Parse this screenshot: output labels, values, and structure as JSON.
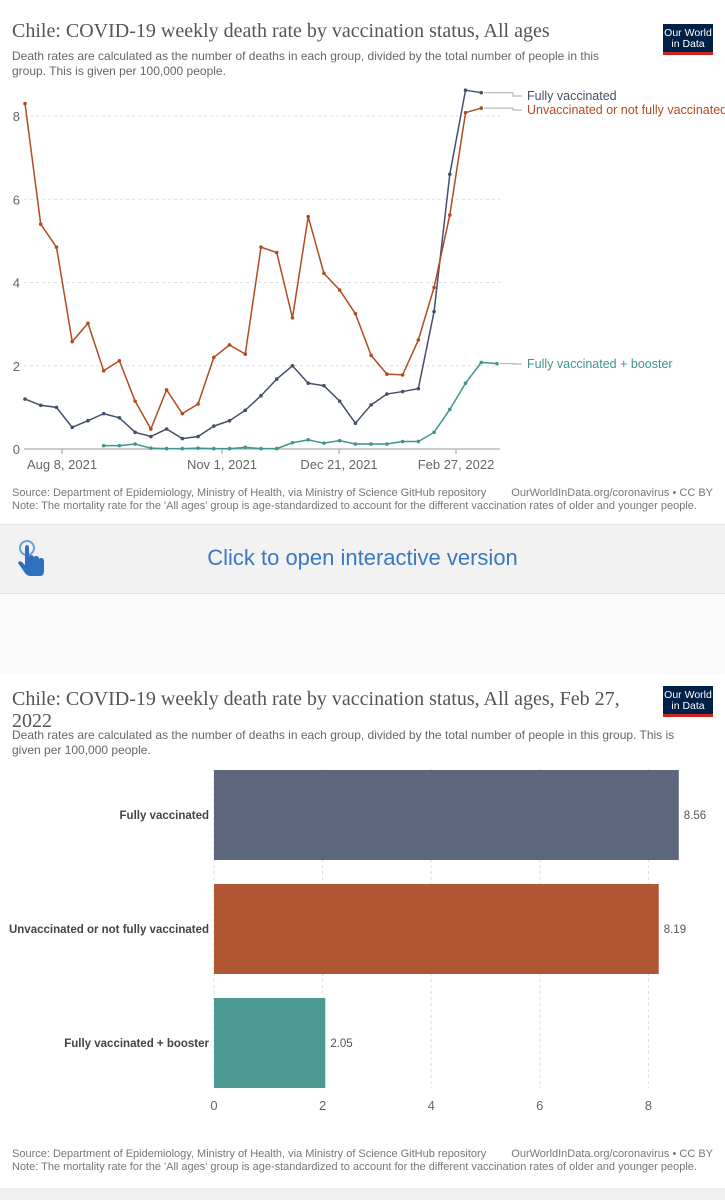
{
  "chart1": {
    "title": "Chile: COVID-19 weekly death rate by vaccination status, All ages",
    "subtitle": "Death rates are calculated as the number of deaths in each group, divided by the total number of people in this group. This is given per 100,000 people.",
    "logo": [
      "Our World",
      "in Data"
    ],
    "source": "Source: Department of Epidemiology, Ministry of Health, via Ministry of Science GitHub repository",
    "url": "OurWorldInData.org/coronavirus • CC BY",
    "note": "Note: The mortality rate for the 'All ages' group is age-standardized to account for the different vaccination rates of older and younger people."
  },
  "cta": {
    "label": "Click to open interactive version",
    "icon": "pointing-hand-icon"
  },
  "chart2": {
    "title": "Chile: COVID-19 weekly death rate by vaccination status, All ages, Feb 27, 2022",
    "subtitle": "Death rates are calculated as the number of deaths in each group, divided by the total number of people in this group. This is given per 100,000 people.",
    "logo": [
      "Our World",
      "in Data"
    ],
    "source": "Source: Department of Epidemiology, Ministry of Health, via Ministry of Science GitHub repository",
    "url": "OurWorldInData.org/coronavirus • CC BY",
    "note": "Note: The mortality rate for the 'All ages' group is age-standardized to account for the different vaccination rates of older and younger people."
  },
  "colors": {
    "fully": "#44506a",
    "unvax": "#b24a22",
    "booster": "#3f968b",
    "bar_fully": "#5c677d",
    "bar_unvax": "#b15633",
    "bar_booster": "#4c9a91",
    "cta": "#3a78c3"
  },
  "chart_data": [
    {
      "type": "line",
      "title": "Chile: COVID-19 weekly death rate by vaccination status, All ages",
      "x_ticks": [
        "Aug 8, 2021",
        "Nov 1, 2021",
        "Dec 21, 2021",
        "Feb 27, 2022"
      ],
      "ylim": [
        0,
        9
      ],
      "y_ticks": [
        0,
        2,
        4,
        6,
        8
      ],
      "grid": true,
      "series": [
        {
          "name": "Fully vaccinated",
          "color": "#44506a",
          "x_start": "2021-08-01",
          "points": [
            [
              0,
              1.2
            ],
            [
              1,
              1.05
            ],
            [
              2,
              1.0
            ],
            [
              3,
              0.52
            ],
            [
              4,
              0.68
            ],
            [
              5,
              0.85
            ],
            [
              6,
              0.75
            ],
            [
              7,
              0.4
            ],
            [
              8,
              0.3
            ],
            [
              9,
              0.48
            ],
            [
              10,
              0.25
            ],
            [
              11,
              0.3
            ],
            [
              12,
              0.55
            ],
            [
              13,
              0.68
            ],
            [
              14,
              0.93
            ],
            [
              15,
              1.28
            ],
            [
              16,
              1.68
            ],
            [
              17,
              2.0
            ],
            [
              18,
              1.58
            ],
            [
              19,
              1.52
            ],
            [
              20,
              1.15
            ],
            [
              21,
              0.62
            ],
            [
              22,
              1.06
            ],
            [
              23,
              1.32
            ],
            [
              24,
              1.38
            ],
            [
              25,
              1.45
            ],
            [
              26,
              3.3
            ],
            [
              27,
              6.6
            ],
            [
              28,
              8.62
            ],
            [
              29,
              8.56
            ]
          ]
        },
        {
          "name": "Unvaccinated or not fully vaccinated",
          "color": "#b24a22",
          "points": [
            [
              0,
              8.3
            ],
            [
              1,
              5.4
            ],
            [
              2,
              4.85
            ],
            [
              3,
              2.58
            ],
            [
              4,
              3.02
            ],
            [
              5,
              1.88
            ],
            [
              6,
              2.12
            ],
            [
              7,
              1.15
            ],
            [
              8,
              0.48
            ],
            [
              9,
              1.42
            ],
            [
              10,
              0.85
            ],
            [
              11,
              1.08
            ],
            [
              12,
              2.2
            ],
            [
              13,
              2.5
            ],
            [
              14,
              2.28
            ],
            [
              15,
              4.85
            ],
            [
              16,
              4.72
            ],
            [
              17,
              3.15
            ],
            [
              18,
              5.58
            ],
            [
              19,
              4.22
            ],
            [
              20,
              3.82
            ],
            [
              21,
              3.25
            ],
            [
              22,
              2.25
            ],
            [
              23,
              1.8
            ],
            [
              24,
              1.78
            ],
            [
              25,
              2.62
            ],
            [
              26,
              3.88
            ],
            [
              27,
              5.62
            ],
            [
              28,
              8.08
            ],
            [
              29,
              8.19
            ]
          ]
        },
        {
          "name": "Fully vaccinated + booster",
          "color": "#3f968b",
          "points": [
            [
              5,
              0.08
            ],
            [
              6,
              0.08
            ],
            [
              7,
              0.12
            ],
            [
              8,
              0.02
            ],
            [
              9,
              0.01
            ],
            [
              10,
              0.01
            ],
            [
              11,
              0.02
            ],
            [
              12,
              0.01
            ],
            [
              13,
              0.01
            ],
            [
              14,
              0.04
            ],
            [
              15,
              0.01
            ],
            [
              16,
              0.01
            ],
            [
              17,
              0.15
            ],
            [
              18,
              0.22
            ],
            [
              19,
              0.14
            ],
            [
              20,
              0.2
            ],
            [
              21,
              0.12
            ],
            [
              22,
              0.12
            ],
            [
              23,
              0.12
            ],
            [
              24,
              0.18
            ],
            [
              25,
              0.18
            ],
            [
              26,
              0.4
            ],
            [
              27,
              0.95
            ],
            [
              28,
              1.58
            ],
            [
              29,
              2.08
            ],
            [
              30,
              2.05
            ]
          ]
        }
      ]
    },
    {
      "type": "bar",
      "orientation": "horizontal",
      "title": "Chile: COVID-19 weekly death rate by vaccination status, All ages, Feb 27, 2022",
      "categories": [
        "Fully vaccinated",
        "Unvaccinated or not fully vaccinated",
        "Fully vaccinated + booster"
      ],
      "values": [
        8.56,
        8.19,
        2.05
      ],
      "value_labels": [
        "8.56",
        "8.19",
        "2.05"
      ],
      "colors": [
        "#5c677d",
        "#b15633",
        "#4c9a91"
      ],
      "xlim": [
        0,
        9
      ],
      "x_ticks": [
        0,
        2,
        4,
        6,
        8
      ],
      "grid": true
    }
  ]
}
